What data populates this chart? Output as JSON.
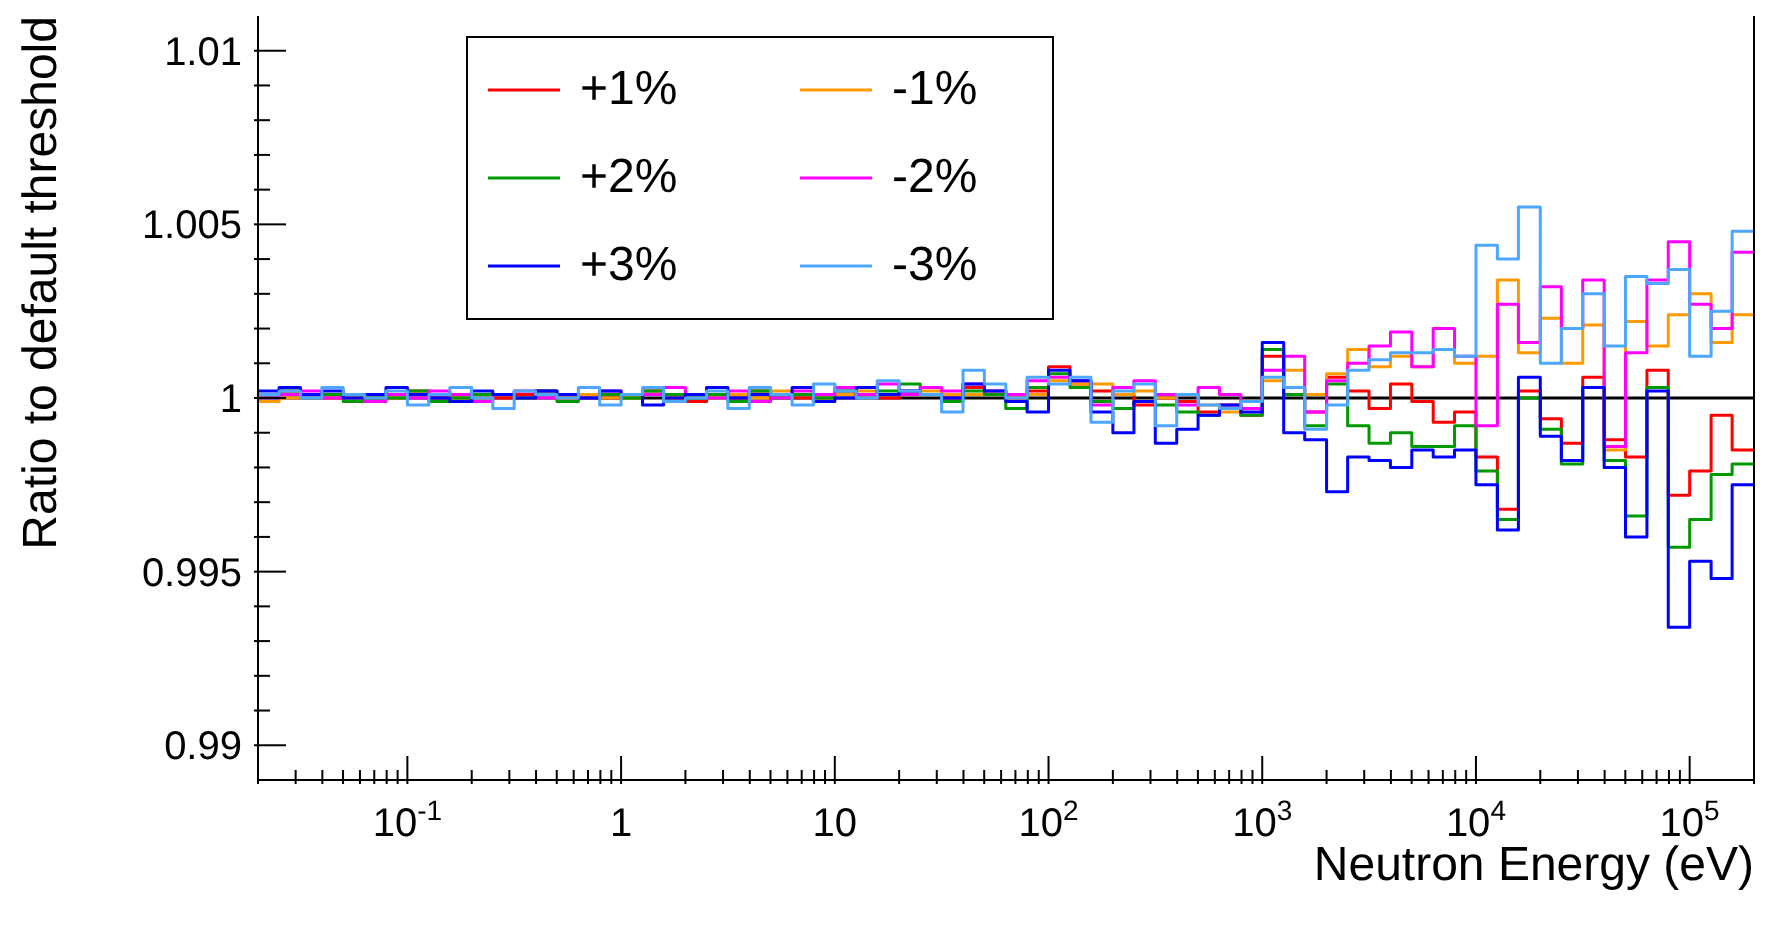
{
  "chart_data": {
    "type": "histogram",
    "xlabel": "Neutron Energy (eV)",
    "ylabel": "Ratio to default threshold",
    "log": "x",
    "legend": "top left",
    "marker": "none",
    "line_style": "solid",
    "xlim": [
      0.02,
      200000
    ],
    "ylim": [
      0.989,
      1.011
    ],
    "xticks": [
      {
        "value": 0.02,
        "label": null
      },
      {
        "value": 0.03,
        "label": null
      },
      {
        "value": 0.04,
        "label": null
      },
      {
        "value": 0.05,
        "label": null
      },
      {
        "value": 0.06,
        "label": null
      },
      {
        "value": 0.07,
        "label": null
      },
      {
        "value": 0.08,
        "label": null
      },
      {
        "value": 0.09,
        "label": null
      },
      {
        "value": 0.1,
        "label": "10$^{-1}$"
      },
      {
        "value": 0.2,
        "label": null
      },
      {
        "value": 0.3,
        "label": null
      },
      {
        "value": 0.4,
        "label": null
      },
      {
        "value": 0.5,
        "label": null
      },
      {
        "value": 0.6,
        "label": null
      },
      {
        "value": 0.7,
        "label": null
      },
      {
        "value": 0.8,
        "label": null
      },
      {
        "value": 0.9,
        "label": null
      },
      1,
      {
        "value": 2,
        "label": null
      },
      {
        "value": 3,
        "label": null
      },
      {
        "value": 4,
        "label": null
      },
      {
        "value": 5,
        "label": null
      },
      {
        "value": 6,
        "label": null
      },
      {
        "value": 7,
        "label": null
      },
      {
        "value": 8,
        "label": null
      },
      {
        "value": 9,
        "label": null
      },
      10,
      {
        "value": 20,
        "label": null
      },
      {
        "value": 30,
        "label": null
      },
      {
        "value": 40,
        "label": null
      },
      {
        "value": 50,
        "label": null
      },
      {
        "value": 60,
        "label": null
      },
      {
        "value": 70,
        "label": null
      },
      {
        "value": 80,
        "label": null
      },
      {
        "value": 90,
        "label": null
      },
      {
        "value": 100,
        "label": "10$^{2}$"
      },
      {
        "value": 200,
        "label": null
      },
      {
        "value": 300,
        "label": null
      },
      {
        "value": 400,
        "label": null
      },
      {
        "value": 500,
        "label": null
      },
      {
        "value": 600,
        "label": null
      },
      {
        "value": 700,
        "label": null
      },
      {
        "value": 800,
        "label": null
      },
      {
        "value": 900,
        "label": null
      },
      {
        "value": 1000,
        "label": "10$^{3}$"
      },
      {
        "value": 2000,
        "label": null
      },
      {
        "value": 3000,
        "label": null
      },
      {
        "value": 4000,
        "label": null
      },
      {
        "value": 5000,
        "label": null
      },
      {
        "value": 6000,
        "label": null
      },
      {
        "value": 7000,
        "label": null
      },
      {
        "value": 8000,
        "label": null
      },
      {
        "value": 9000,
        "label": null
      },
      {
        "value": 10000,
        "label": "10$^{4}$"
      },
      {
        "value": 20000,
        "label": null
      },
      {
        "value": 30000,
        "label": null
      },
      {
        "value": 40000,
        "label": null
      },
      {
        "value": 50000,
        "label": null
      },
      {
        "value": 60000,
        "label": null
      },
      {
        "value": 70000,
        "label": null
      },
      {
        "value": 80000,
        "label": null
      },
      {
        "value": 90000,
        "label": null
      },
      {
        "value": 100000,
        "label": "10$^{5}$"
      },
      {
        "value": 200000,
        "label": null
      }
    ],
    "yticks": [
      0.99,
      {
        "value": 0.991,
        "label": null
      },
      {
        "value": 0.992,
        "label": null
      },
      {
        "value": 0.993,
        "label": null
      },
      {
        "value": 0.994,
        "label": null
      },
      0.995,
      {
        "value": 0.996,
        "label": null
      },
      {
        "value": 0.997,
        "label": null
      },
      {
        "value": 0.998,
        "label": null
      },
      {
        "value": 0.999,
        "label": null
      },
      1,
      {
        "value": 1.001,
        "label": null
      },
      {
        "value": 1.002,
        "label": null
      },
      {
        "value": 1.003,
        "label": null
      },
      {
        "value": 1.004,
        "label": null
      },
      1.005,
      {
        "value": 1.006,
        "label": null
      },
      {
        "value": 1.007,
        "label": null
      },
      {
        "value": 1.008,
        "label": null
      },
      {
        "value": 1.009,
        "label": null
      },
      1.01
    ],
    "ref_lines": [
      {
        "axis": "y",
        "value": 1,
        "color": "#000000"
      }
    ],
    "bins": [
      0.02,
      0.0251,
      0.0316,
      0.0398,
      0.0501,
      0.0631,
      0.0794,
      0.1,
      0.126,
      0.158,
      0.2,
      0.251,
      0.316,
      0.398,
      0.501,
      0.631,
      0.794,
      1,
      1.26,
      1.58,
      2,
      2.51,
      3.16,
      3.98,
      5.01,
      6.31,
      7.94,
      10,
      12.6,
      15.8,
      20,
      25.1,
      31.6,
      39.8,
      50.1,
      63.1,
      79.4,
      100,
      126,
      158,
      200,
      251,
      316,
      398,
      501,
      631,
      794,
      1000,
      1260,
      1580,
      2000,
      2510,
      3160,
      3980,
      5010,
      6310,
      7940,
      10000,
      12600,
      15800,
      20000,
      25100,
      31600,
      39800,
      50100,
      63100,
      79400,
      100000,
      126000,
      158000,
      200000
    ],
    "series": [
      {
        "name": "+1%",
        "color": "#ff0000",
        "values": [
          1.0001,
          1.0002,
          1.0001,
          1,
          1.0001,
          1,
          1.0001,
          1.0002,
          1,
          0.9999,
          1.0001,
          1,
          1.0001,
          1.0002,
          1,
          1.0001,
          1,
          1.0001,
          1.0002,
          1,
          0.9999,
          1.0001,
          1,
          1.0002,
          1.0001,
          1,
          1.0001,
          1.0002,
          1.0001,
          1,
          1.0002,
          1.0001,
          1,
          1.0003,
          1.0001,
          1,
          1.0002,
          1.0009,
          1.0004,
          1.0002,
          1.0001,
          0.9998,
          1,
          0.9999,
          0.9996,
          0.9998,
          0.9995,
          1.0012,
          1.0003,
          0.9996,
          1.0006,
          1.0002,
          0.9997,
          1.0004,
          0.9999,
          0.9993,
          0.9996,
          0.9983,
          0.9968,
          1.0002,
          0.9994,
          0.9987,
          1.0006,
          0.9988,
          0.9983,
          1.0008,
          0.9972,
          0.9979,
          0.9995,
          0.9985
        ]
      },
      {
        "name": "-1%",
        "color": "#ff9900",
        "values": [
          0.9999,
          1,
          1.0001,
          1,
          1,
          1.0001,
          1,
          1.0001,
          1.0001,
          1,
          1,
          1.0001,
          1,
          1.0001,
          1,
          1.0001,
          1,
          1,
          1.0001,
          1,
          1.0001,
          1,
          1.0001,
          1,
          1.0002,
          1.0001,
          1,
          1.0001,
          1.0002,
          1.0001,
          1.0001,
          1.0002,
          1.0001,
          1.0001,
          1.0002,
          1,
          1.0001,
          1.0005,
          1.0004,
          1.0004,
          1.0001,
          1.0002,
          1,
          1.0001,
          0.9998,
          0.9996,
          0.9997,
          1.0005,
          1.0008,
          1.0001,
          1.0007,
          1.0014,
          1.0009,
          1.0012,
          1.0009,
          1.0014,
          1.001,
          1.0012,
          1.0034,
          1.0013,
          1.0023,
          1.001,
          1.0021,
          0.9985,
          1.0022,
          1.0015,
          1.0024,
          1.003,
          1.0016,
          1.0024
        ]
      },
      {
        "name": "+2%",
        "color": "#009900",
        "values": [
          1,
          1.0002,
          1.0001,
          1.0001,
          0.9999,
          1,
          1,
          1.0002,
          0.9999,
          1,
          1.0001,
          1.0001,
          1,
          1.0002,
          0.9999,
          1,
          1.0001,
          1,
          1.0002,
          1.0001,
          1,
          1.0001,
          0.9999,
          1.0002,
          1,
          1.0001,
          1,
          1.0002,
          1.0001,
          1.0002,
          1.0004,
          1.0001,
          0.9999,
          1.0002,
          1.0001,
          0.9997,
          1.0003,
          1.0007,
          1.0003,
          0.9999,
          0.9997,
          0.9999,
          0.9998,
          0.9996,
          0.9995,
          0.9997,
          0.9995,
          1.0014,
          1.0001,
          0.9992,
          1.0004,
          0.9992,
          0.9987,
          0.999,
          0.9986,
          0.9986,
          0.9992,
          0.9979,
          0.9965,
          1,
          0.9991,
          0.9981,
          1.0003,
          0.9982,
          0.9966,
          1.0003,
          0.9957,
          0.9965,
          0.9978,
          0.9981
        ]
      },
      {
        "name": "-2%",
        "color": "#ff00ff",
        "values": [
          1,
          1.0001,
          1.0002,
          1,
          1.0001,
          0.9999,
          1.0001,
          1,
          1.0002,
          1.0001,
          0.9999,
          1.0001,
          1.0002,
          1,
          1.0001,
          1,
          1.0002,
          1.0001,
          1.0001,
          1.0003,
          1.0001,
          1,
          1.0002,
          0.9999,
          1,
          1.0002,
          1.0001,
          1.0003,
          1.0001,
          1.0004,
          1.0001,
          1.0003,
          1.0002,
          1.0004,
          1.0002,
          1.0001,
          1.0005,
          1.0006,
          1.0005,
          0.9998,
          1.0003,
          1.0005,
          1.0001,
          0.9998,
          1.0003,
          1.0001,
          0.9997,
          1.0008,
          1.0012,
          0.9996,
          1.0005,
          1.001,
          1.0015,
          1.0019,
          1.0009,
          1.002,
          1.0012,
          0.9992,
          1.0027,
          1.0016,
          1.0032,
          1.002,
          1.0034,
          0.9986,
          1.0013,
          1.0034,
          1.0045,
          1.0027,
          1.002,
          1.0042
        ]
      },
      {
        "name": "+3%",
        "color": "#0000ff",
        "values": [
          1.0002,
          1.0003,
          1.0001,
          1.0002,
          1,
          1.0001,
          1.0003,
          1.0001,
          1,
          0.9999,
          1.0002,
          1.0001,
          1,
          1.0002,
          1.0001,
          1,
          1.0002,
          1.0001,
          0.9998,
          1,
          1.0001,
          1.0003,
          1,
          1.0001,
          1.0001,
          1.0003,
          0.9999,
          1,
          1.0003,
          1.0001,
          1.0002,
          1.0001,
          1,
          1.0004,
          1.0002,
          0.9999,
          0.9996,
          1.0008,
          1.0005,
          0.9996,
          0.999,
          0.9999,
          0.9987,
          0.9991,
          0.9995,
          0.9998,
          0.9996,
          1.0016,
          0.999,
          0.9988,
          0.9973,
          0.9983,
          0.9982,
          0.998,
          0.9985,
          0.9983,
          0.9985,
          0.9975,
          0.9962,
          1.0006,
          0.9989,
          0.9982,
          1.0003,
          0.998,
          0.996,
          1.0002,
          0.9934,
          0.9953,
          0.9948,
          0.9975
        ]
      },
      {
        "name": "-3%",
        "color": "#4da6ff",
        "values": [
          1.0001,
          1.0002,
          1,
          1.0003,
          1.0001,
          1,
          1.0002,
          0.9998,
          1.0001,
          1.0003,
          1,
          0.9997,
          1.0002,
          1.0001,
          1,
          1.0003,
          0.9998,
          1.0001,
          1.0003,
          0.9999,
          1,
          1.0002,
          0.9997,
          1.0003,
          1.0001,
          0.9998,
          1.0004,
          1.0002,
          1,
          1.0005,
          1.0002,
          1.0001,
          0.9996,
          1.0008,
          1.0004,
          1,
          1.0006,
          1.0004,
          1.0006,
          0.9993,
          1.0002,
          1.0004,
          0.9992,
          1.0001,
          0.9998,
          0.9997,
          0.9999,
          1.0006,
          1.0003,
          0.9991,
          0.9998,
          1.0008,
          1.0011,
          1.0013,
          1.0013,
          1.0014,
          1.0012,
          1.0044,
          1.004,
          1.0055,
          1.001,
          1.002,
          1.003,
          1.0015,
          1.0035,
          1.0033,
          1.0037,
          1.0012,
          1.0025,
          1.0048
        ]
      }
    ]
  }
}
